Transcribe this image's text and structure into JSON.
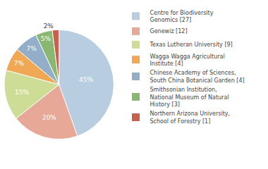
{
  "chart_data": {
    "type": "pie",
    "categories": [
      "Centre for Biodiversity\nGenomics [27]",
      "Genewiz [12]",
      "Texas Lutheran University [9]",
      "Wagga Wagga Agricultural\nInstitute [4]",
      "Chinese Academy of Sciences,\nSouth China Botanical Garden [4]",
      "Smithsonian Institution,\nNational Museum of Natural\nHistory [3]",
      "Northern Arizona University,\nSchool of Forestry [1]"
    ],
    "values": [
      45,
      20,
      15,
      7,
      7,
      5,
      2
    ],
    "value_labels": [
      "45%",
      "20%",
      "15%",
      "7%",
      "7%",
      "5%",
      "2%"
    ],
    "colors": [
      "#b8cde0",
      "#e8a898",
      "#cedd96",
      "#f0a855",
      "#92aec8",
      "#8ab870",
      "#c86050"
    ],
    "data_labels": true,
    "legend": "right"
  }
}
